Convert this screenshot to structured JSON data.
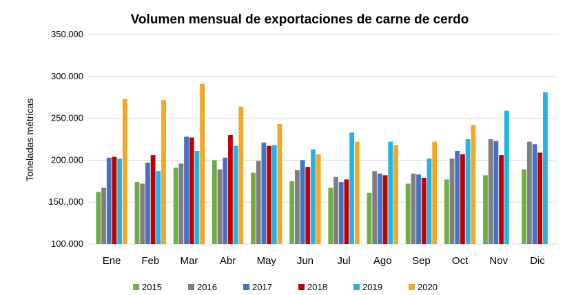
{
  "chart_data": {
    "type": "bar",
    "title": "Volumen mensual de exportaciones de carne de cerdo",
    "ylabel": "Toneladas métricas",
    "xlabel": "",
    "ylim": [
      100000,
      350000
    ],
    "yticks": [
      100000,
      150000,
      200000,
      250000,
      300000,
      350000
    ],
    "ytick_labels": [
      "100.000",
      "150.,000",
      "200.000",
      "250.000",
      "300.000",
      "350.000"
    ],
    "grid": true,
    "legend_position": "bottom",
    "categories": [
      "Ene",
      "Feb",
      "Mar",
      "Abr",
      "May",
      "Jun",
      "Jul",
      "Ago",
      "Sep",
      "Oct",
      "Nov",
      "Dic"
    ],
    "series": [
      {
        "name": "2015",
        "color": "#70ad47",
        "values": [
          162000,
          174000,
          191000,
          200000,
          185000,
          175000,
          167000,
          161000,
          172000,
          177000,
          182000,
          189000
        ]
      },
      {
        "name": "2016",
        "color": "#7f7f7f",
        "values": [
          167000,
          172000,
          196000,
          189000,
          199000,
          188000,
          180000,
          187000,
          184000,
          202000,
          225000,
          222000
        ]
      },
      {
        "name": "2017",
        "color": "#4472c4",
        "values": [
          203000,
          197000,
          228000,
          203000,
          221000,
          200000,
          174000,
          184000,
          183000,
          211000,
          223000,
          219000
        ]
      },
      {
        "name": "2018",
        "color": "#c00000",
        "values": [
          204000,
          206000,
          227000,
          230000,
          217000,
          192000,
          177000,
          182000,
          179000,
          207000,
          206000,
          209000
        ]
      },
      {
        "name": "2019",
        "color": "#1eb4e6",
        "values": [
          202000,
          187000,
          211000,
          217000,
          218000,
          213000,
          233000,
          222000,
          202000,
          225000,
          259000,
          281000
        ]
      },
      {
        "name": "2020",
        "color": "#f5a623",
        "values": [
          273000,
          272000,
          291000,
          264000,
          243000,
          207000,
          222000,
          218000,
          222000,
          242000,
          null,
          null
        ]
      }
    ]
  }
}
